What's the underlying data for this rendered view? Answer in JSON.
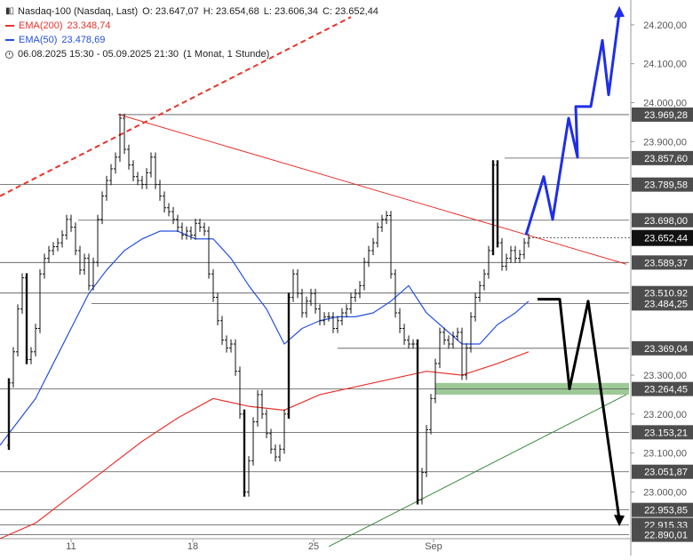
{
  "legend": {
    "instrument": "Nasdaq-100 (Nasdaq, Last)",
    "open": "O: 23.647,07",
    "high": "H: 23.654,68",
    "low": "L: 23.606,34",
    "close": "C: 23.652,44",
    "ema200_label": "EMA(200)",
    "ema200_value": "23.348,74",
    "ema50_label": "EMA(50)",
    "ema50_value": "23.478,69",
    "range": "06.08.2025 15:30 - 05.09.2025 21:30",
    "resolution": "(1 Monat, 1 Stunde)"
  },
  "colors": {
    "ema200": "#e8332d",
    "ema50": "#2450e0",
    "trendline": "#e8332d",
    "support_zone": "#8cbf84",
    "support_line": "#3a8a3a",
    "projection_up": "#1f2ee8",
    "projection_down": "#000000",
    "level_label_bg": "#4d4d4d",
    "current_label_bg": "#111111"
  },
  "chart_data": {
    "type": "line",
    "title": "Nasdaq-100 (Nasdaq, Last)",
    "ylim": [
      22880,
      24250
    ],
    "x_ticks": [
      "11",
      "18",
      "25",
      "Sep"
    ],
    "y_ticks": [
      "24.200,00",
      "24.100,00",
      "24.000,00",
      "23.900,00",
      "23.300,00",
      "23.200,00",
      "23.100,00",
      "23.000,00"
    ],
    "levels": [
      {
        "value": 23969.28,
        "label": "23.969,28"
      },
      {
        "value": 23857.6,
        "label": "23.857,60"
      },
      {
        "value": 23789.58,
        "label": "23.789,58"
      },
      {
        "value": 23698.0,
        "label": "23.698,00"
      },
      {
        "value": 23589.37,
        "label": "23.589,37"
      },
      {
        "value": 23510.92,
        "label": "23.510,92"
      },
      {
        "value": 23484.25,
        "label": "23.484,25"
      },
      {
        "value": 23369.04,
        "label": "23.369,04"
      },
      {
        "value": 23264.45,
        "label": "23.264,45"
      },
      {
        "value": 23153.21,
        "label": "23.153,21"
      },
      {
        "value": 23051.87,
        "label": "23.051,87"
      },
      {
        "value": 22953.85,
        "label": "22.953,85"
      },
      {
        "value": 22915.33,
        "label": "22.915,33"
      },
      {
        "value": 22890.01,
        "label": "22.890,01"
      }
    ],
    "current_price": {
      "value": 23652.44,
      "label": "23.652,44"
    },
    "series": [
      {
        "name": "Nasdaq-100",
        "x": [
          0,
          10,
          15,
          20,
          25,
          30,
          35,
          40,
          45,
          50,
          55,
          60,
          65,
          70,
          75,
          80,
          85,
          90,
          95,
          100,
          105,
          110,
          115,
          120,
          125,
          130,
          135,
          140,
          145,
          150,
          155,
          160,
          165,
          170,
          175,
          180,
          185,
          190,
          195,
          200,
          205,
          210,
          215,
          220,
          225,
          230,
          235,
          240,
          245,
          250,
          255,
          260,
          265,
          270,
          275,
          280,
          285,
          290,
          295,
          300,
          305,
          310,
          315,
          320,
          325,
          330,
          335,
          340,
          345,
          350,
          355,
          360,
          365,
          370,
          375,
          380,
          385,
          390,
          395,
          400,
          405,
          410,
          415,
          420,
          425,
          430,
          435,
          440,
          445,
          450,
          455,
          460,
          465,
          470,
          475,
          480,
          485,
          490,
          495,
          500,
          505,
          510,
          515,
          520,
          525,
          530,
          535,
          540,
          545,
          550,
          555,
          560,
          565,
          570,
          575,
          580,
          585,
          590,
          595
        ],
        "values": [
          23120,
          23280,
          23360,
          23470,
          23550,
          23340,
          23360,
          23420,
          23560,
          23600,
          23620,
          23630,
          23640,
          23660,
          23700,
          23680,
          23620,
          23570,
          23600,
          23530,
          23590,
          23700,
          23760,
          23800,
          23830,
          23860,
          23960,
          23880,
          23840,
          23810,
          23800,
          23790,
          23820,
          23860,
          23790,
          23760,
          23730,
          23720,
          23700,
          23680,
          23660,
          23670,
          23660,
          23690,
          23680,
          23670,
          23560,
          23500,
          23440,
          23390,
          23370,
          23380,
          23310,
          23200,
          23000,
          23080,
          23180,
          23250,
          23200,
          23150,
          23110,
          23090,
          23110,
          23200,
          23500,
          23560,
          23510,
          23460,
          23490,
          23510,
          23470,
          23440,
          23450,
          23450,
          23420,
          23440,
          23460,
          23470,
          23500,
          23510,
          23530,
          23590,
          23620,
          23640,
          23680,
          23700,
          23710,
          23560,
          23460,
          23420,
          23390,
          23380,
          23380,
          22980,
          23050,
          23160,
          23240,
          23330,
          23410,
          23390,
          23380,
          23400,
          23410,
          23300,
          23370,
          23450,
          23500,
          23530,
          23560,
          23620,
          23840,
          23640,
          23580,
          23600,
          23620,
          23600,
          23610,
          23640,
          23652
        ]
      },
      {
        "name": "EMA(50)",
        "x": [
          0,
          20,
          40,
          60,
          80,
          100,
          120,
          140,
          160,
          180,
          200,
          220,
          240,
          260,
          280,
          300,
          320,
          340,
          360,
          380,
          400,
          420,
          440,
          460,
          480,
          500,
          520,
          540,
          560,
          580,
          595
        ],
        "values": [
          23120,
          23180,
          23240,
          23330,
          23420,
          23510,
          23570,
          23620,
          23650,
          23670,
          23670,
          23650,
          23650,
          23600,
          23530,
          23470,
          23380,
          23420,
          23440,
          23450,
          23450,
          23460,
          23490,
          23530,
          23460,
          23420,
          23380,
          23380,
          23430,
          23460,
          23490
        ]
      },
      {
        "name": "EMA(200)",
        "x": [
          0,
          40,
          80,
          120,
          160,
          200,
          240,
          280,
          320,
          360,
          400,
          440,
          480,
          520,
          560,
          595
        ],
        "values": [
          22880,
          22920,
          22990,
          23060,
          23130,
          23190,
          23240,
          23220,
          23210,
          23250,
          23270,
          23290,
          23310,
          23300,
          23330,
          23360
        ]
      }
    ],
    "annotations": {
      "trendline": {
        "from": [
          133,
          23970
        ],
        "to": [
          705,
          23585
        ]
      },
      "support_line": {
        "from": [
          370,
          22860
        ],
        "to": [
          705,
          23250
        ]
      },
      "ema200_dotted": {
        "from": [
          0,
          23760
        ],
        "to": [
          395,
          24220
        ]
      },
      "support_zone": {
        "from": 23250,
        "to": 23280,
        "x_start": 490
      },
      "projection_up": [
        [
          592,
          23660
        ],
        [
          612,
          23810
        ],
        [
          622,
          23700
        ],
        [
          640,
          23960
        ],
        [
          650,
          23860
        ],
        [
          648,
          23990
        ],
        [
          665,
          23990
        ],
        [
          678,
          24160
        ],
        [
          685,
          24020
        ],
        [
          697,
          24230
        ]
      ],
      "projection_down": [
        [
          605,
          23495
        ],
        [
          630,
          23495
        ],
        [
          641,
          23265
        ],
        [
          662,
          23490
        ],
        [
          697,
          22930
        ]
      ]
    }
  }
}
